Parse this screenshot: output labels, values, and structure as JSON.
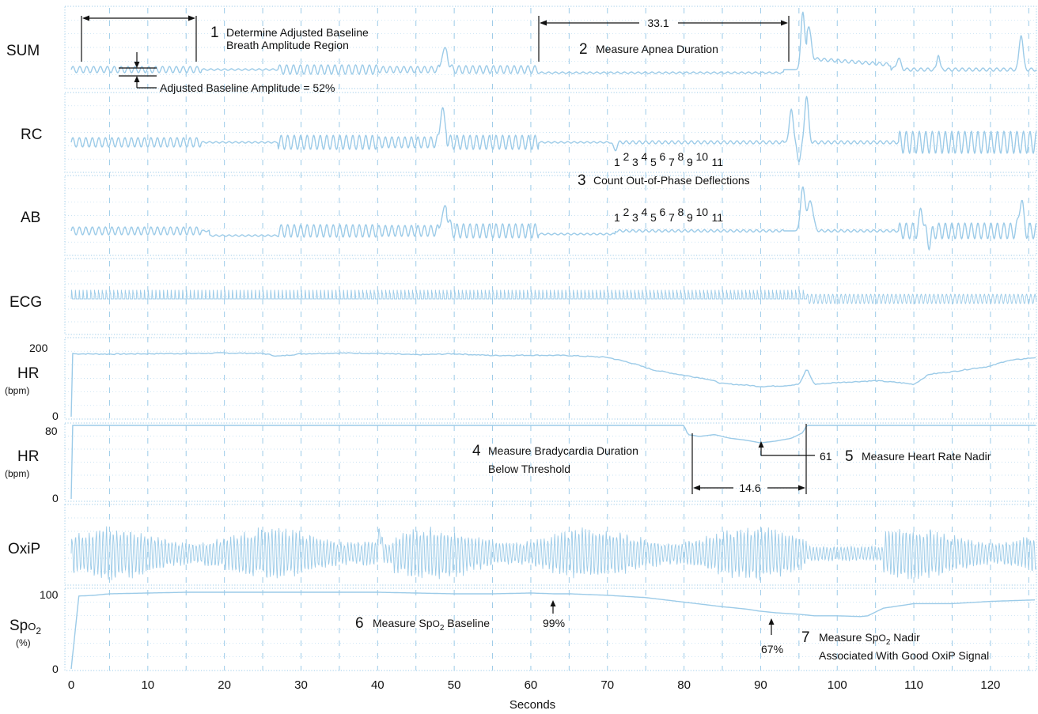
{
  "chart_data": {
    "type": "line",
    "xlabel": "Seconds",
    "xlim": [
      0,
      126
    ],
    "x_ticks": [
      "0",
      "10",
      "20",
      "30",
      "40",
      "50",
      "60",
      "70",
      "80",
      "90",
      "100",
      "110",
      "120"
    ],
    "channels": [
      {
        "key": "sum",
        "label": "SUM"
      },
      {
        "key": "rc",
        "label": "RC"
      },
      {
        "key": "ab",
        "label": "AB"
      },
      {
        "key": "ecg",
        "label": "ECG"
      },
      {
        "key": "hr1",
        "label": "HR",
        "unit": "(bpm)",
        "scale_max": "200",
        "scale_min": "0",
        "ylim": [
          0,
          200
        ]
      },
      {
        "key": "hr2",
        "label": "HR",
        "unit": "(bpm)",
        "scale_max": "80",
        "scale_min": "0",
        "ylim": [
          0,
          80
        ]
      },
      {
        "key": "oxip",
        "label": "OxiP"
      },
      {
        "key": "spo2",
        "label": "SpO2",
        "unit": "(%)",
        "scale_max": "100",
        "scale_min": "0",
        "ylim": [
          0,
          100
        ]
      }
    ],
    "hr_series": {
      "x": [
        0,
        5,
        10,
        17,
        20,
        25,
        27,
        30,
        35,
        40,
        45,
        50,
        55,
        60,
        65,
        70,
        73,
        76,
        80,
        83,
        85,
        88,
        90,
        93,
        95,
        95.5,
        96,
        97,
        100,
        105,
        108,
        110,
        112,
        115,
        118,
        120,
        122,
        124,
        126
      ],
      "y": [
        175,
        174,
        175,
        176,
        177,
        176,
        168,
        175,
        177,
        176,
        172,
        175,
        170,
        171,
        170,
        165,
        150,
        130,
        115,
        105,
        92,
        88,
        84,
        86,
        90,
        108,
        135,
        90,
        95,
        100,
        95,
        90,
        118,
        125,
        135,
        140,
        155,
        160,
        165
      ]
    },
    "hr_threshold_series": {
      "x": [
        0,
        80,
        80.5,
        82,
        84,
        86,
        88,
        90,
        92,
        94,
        95.5,
        96,
        126
      ],
      "y": [
        80,
        80,
        70,
        68,
        70,
        66,
        64,
        61,
        63,
        66,
        72,
        80,
        80
      ]
    },
    "spo2_series": {
      "x": [
        0,
        1,
        3,
        5,
        10,
        15,
        20,
        30,
        40,
        45,
        50,
        55,
        60,
        63,
        65,
        70,
        75,
        80,
        85,
        88,
        90,
        92,
        95,
        97,
        100,
        103,
        104,
        106,
        110,
        115,
        120,
        126
      ],
      "y": [
        0,
        96,
        97,
        99,
        100,
        101,
        101,
        101,
        101,
        100,
        99,
        99,
        100,
        99,
        99,
        97,
        94,
        88,
        82,
        79,
        76,
        74,
        72,
        70,
        70,
        69,
        70,
        80,
        86,
        86,
        89,
        91
      ]
    },
    "annotations": [
      {
        "num": "1",
        "text": [
          "Determine Adjusted Baseline",
          "Breath Amplitude Region"
        ]
      },
      {
        "text": [
          "Adjusted Baseline Amplitude = 52%"
        ]
      },
      {
        "num": "2",
        "text": [
          "Measure Apnea Duration"
        ],
        "value": "33.1"
      },
      {
        "num": "3",
        "text": [
          "Count Out-of-Phase Deflections"
        ]
      },
      {
        "num": "4",
        "text": [
          "Measure Bradycardia Duration",
          "Below Threshold"
        ],
        "value": "14.6"
      },
      {
        "num": "5",
        "text": [
          "Measure Heart Rate Nadir"
        ],
        "value": "61"
      },
      {
        "num": "6",
        "text": [
          "Measure SpO2 Baseline"
        ],
        "value": "99%"
      },
      {
        "num": "7",
        "text": [
          "Measure SpO2 Nadir",
          "Associated With Good OxiP Signal"
        ],
        "value": "67%"
      }
    ],
    "deflection_counts": [
      "1",
      "2",
      "3",
      "4",
      "5",
      "6",
      "7",
      "8",
      "9",
      "10",
      "11"
    ],
    "grid": true
  },
  "colors": {
    "trace": "#9ccbe8",
    "annotation": "#111111",
    "grid": "#b9daf0"
  }
}
